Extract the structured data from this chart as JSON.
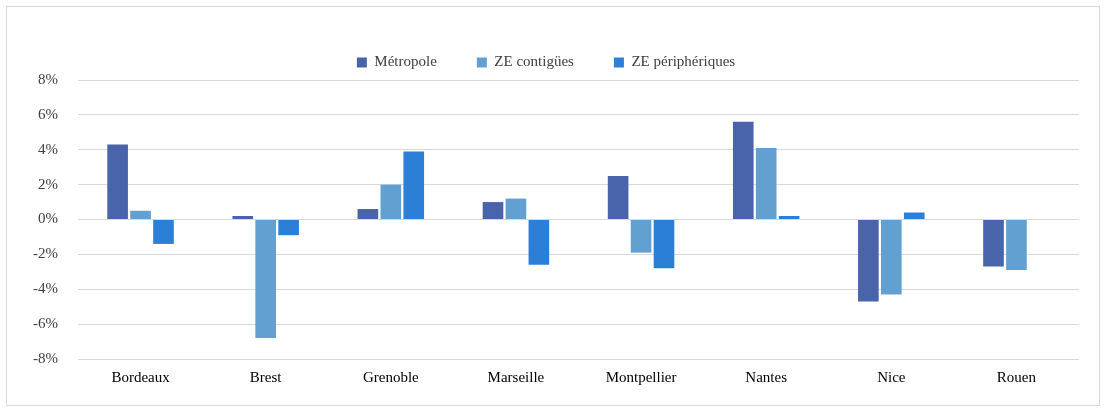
{
  "chart_data": {
    "type": "bar",
    "categories": [
      "Bordeaux",
      "Brest",
      "Grenoble",
      "Marseille",
      "Montpellier",
      "Nantes",
      "Nice",
      "Rouen"
    ],
    "series": [
      {
        "name": "Métropole",
        "color": "#4a64ac",
        "values": [
          4.3,
          0.2,
          0.6,
          1.0,
          2.5,
          5.6,
          -4.7,
          -2.7
        ]
      },
      {
        "name": "ZE contigües",
        "color": "#62a0d2",
        "values": [
          0.5,
          -6.8,
          2.0,
          1.2,
          -1.9,
          4.1,
          -4.3,
          -2.9
        ]
      },
      {
        "name": "ZE périphériques",
        "color": "#2b7fd6",
        "values": [
          -1.4,
          -0.9,
          3.9,
          -2.6,
          -2.8,
          0.2,
          0.4,
          null
        ]
      }
    ],
    "ylim": [
      -8,
      8
    ],
    "yticks": [
      {
        "value": -8,
        "label": "-8%"
      },
      {
        "value": -6,
        "label": "-6%"
      },
      {
        "value": -4,
        "label": "-4%"
      },
      {
        "value": -2,
        "label": "-2%"
      },
      {
        "value": 0,
        "label": "0%"
      },
      {
        "value": 2,
        "label": "2%"
      },
      {
        "value": 4,
        "label": "4%"
      },
      {
        "value": 6,
        "label": "6%"
      },
      {
        "value": 8,
        "label": "8%"
      }
    ],
    "grid": "y",
    "legend": "top"
  }
}
